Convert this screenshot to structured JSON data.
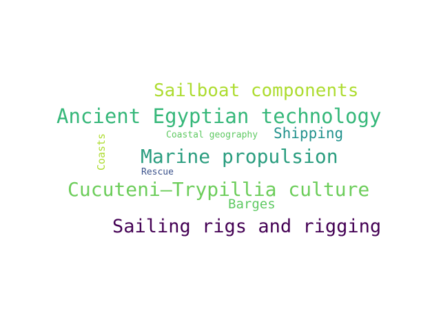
{
  "words": [
    {
      "text": "Sailboat components",
      "color": "#addc30"
    },
    {
      "text": "Ancient Egyptian technology",
      "color": "#35b779"
    },
    {
      "text": "Coastal geography",
      "color": "#5ec962"
    },
    {
      "text": "Shipping",
      "color": "#21918c"
    },
    {
      "text": "Coasts",
      "color": "#addc30"
    },
    {
      "text": "Marine propulsion",
      "color": "#2a9d7f"
    },
    {
      "text": "Rescue",
      "color": "#3b528b"
    },
    {
      "text": "Cucuteni–Trypillia culture",
      "color": "#6ccd5a"
    },
    {
      "text": "Barges",
      "color": "#5ec962"
    },
    {
      "text": "Sailing rigs and rigging",
      "color": "#440154"
    }
  ]
}
